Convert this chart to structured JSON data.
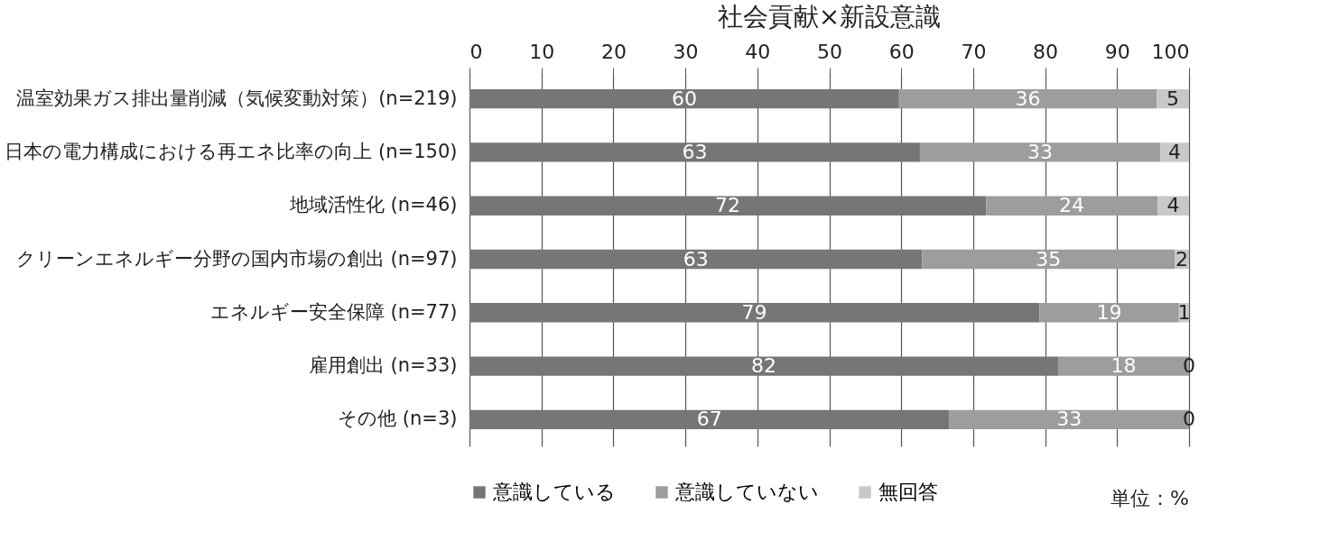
{
  "chart_data": {
    "type": "bar",
    "title": "社会貢献×新設意識",
    "orientation": "horizontal",
    "stacked": true,
    "categories": [
      "温室効果ガス排出量削減（気候変動対策）(n=219)",
      "日本の電力構成における再エネ比率の向上 (n=150)",
      "地域活性化 (n=46)",
      "クリーンエネルギー分野の国内市場の創出 (n=97)",
      "エネルギー安全保障 (n=77)",
      "雇用創出 (n=33)",
      "その他 (n=3)"
    ],
    "series": [
      {
        "name": "意識している",
        "color": "#767676",
        "values": [
          59.7,
          62.6,
          71.8,
          62.9,
          79.2,
          81.8,
          66.7
        ],
        "value_labels": [
          "60",
          "63",
          "72",
          "63",
          "79",
          "82",
          "67"
        ]
      },
      {
        "name": "意識していない",
        "color": "#9d9d9d",
        "values": [
          35.8,
          33.4,
          23.8,
          35.1,
          19.4,
          18.2,
          33.3
        ],
        "value_labels": [
          "36",
          "33",
          "24",
          "35",
          "19",
          "18",
          "33"
        ]
      },
      {
        "name": "無回答",
        "color": "#c8c8c8",
        "values": [
          4.5,
          4.0,
          4.4,
          2.0,
          1.4,
          0,
          0
        ],
        "value_labels": [
          "5",
          "4",
          "4",
          "2",
          "1",
          "0",
          "0"
        ]
      }
    ],
    "xlim": [
      0,
      100
    ],
    "xticks": [
      0,
      10,
      20,
      30,
      40,
      50,
      60,
      70,
      80,
      90,
      100
    ],
    "grid": "x",
    "legend": "bottom",
    "annotations": [
      "単位：%"
    ]
  }
}
